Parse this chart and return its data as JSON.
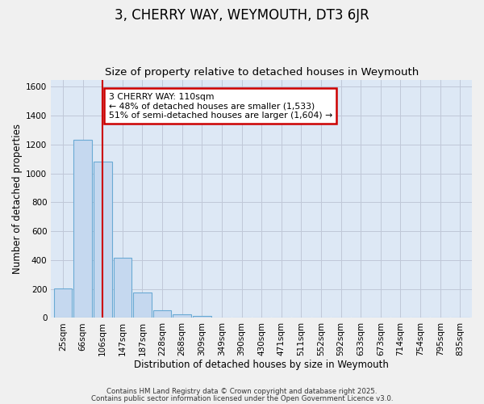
{
  "title": "3, CHERRY WAY, WEYMOUTH, DT3 6JR",
  "subtitle": "Size of property relative to detached houses in Weymouth",
  "xlabel": "Distribution of detached houses by size in Weymouth",
  "ylabel": "Number of detached properties",
  "bar_labels": [
    "25sqm",
    "66sqm",
    "106sqm",
    "147sqm",
    "187sqm",
    "228sqm",
    "268sqm",
    "309sqm",
    "349sqm",
    "390sqm",
    "430sqm",
    "471sqm",
    "511sqm",
    "552sqm",
    "592sqm",
    "633sqm",
    "673sqm",
    "714sqm",
    "754sqm",
    "795sqm",
    "835sqm"
  ],
  "bar_heights": [
    205,
    1235,
    1080,
    415,
    175,
    50,
    25,
    15,
    0,
    0,
    0,
    0,
    0,
    0,
    0,
    0,
    0,
    0,
    0,
    0,
    0
  ],
  "bar_color": "#c5d8ef",
  "bar_edge_color": "#6aaad4",
  "ylim": [
    0,
    1650
  ],
  "yticks": [
    0,
    200,
    400,
    600,
    800,
    1000,
    1200,
    1400,
    1600
  ],
  "vline_x": 2.0,
  "vline_color": "#cc0000",
  "annotation_title": "3 CHERRY WAY: 110sqm",
  "annotation_line1": "← 48% of detached houses are smaller (1,533)",
  "annotation_line2": "51% of semi-detached houses are larger (1,604) →",
  "annotation_box_color": "#ffffff",
  "annotation_box_edge": "#cc0000",
  "plot_bg_color": "#dde8f5",
  "fig_bg_color": "#f0f0f0",
  "grid_color": "#c0c8d8",
  "footnote1": "Contains HM Land Registry data © Crown copyright and database right 2025.",
  "footnote2": "Contains public sector information licensed under the Open Government Licence v3.0.",
  "title_fontsize": 12,
  "subtitle_fontsize": 9.5,
  "axis_label_fontsize": 8.5,
  "tick_fontsize": 7.5,
  "annot_fontsize": 7.8
}
